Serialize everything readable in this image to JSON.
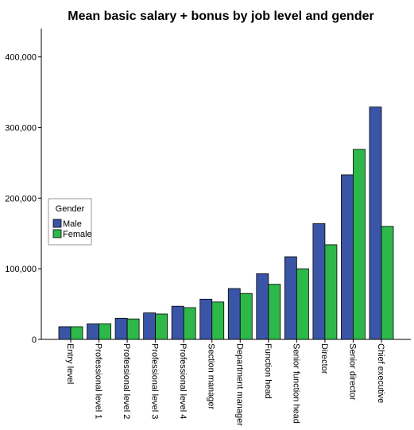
{
  "chart_data": {
    "type": "bar",
    "title": "Mean basic salary + bonus by job level and gender",
    "categories": [
      "Entry level",
      "Professional level 1",
      "Professional level 2",
      "Professional level 3",
      "Professional level 4",
      "Section manager",
      "Department manager",
      "Function head",
      "Senior function head",
      "Director",
      "Senior director",
      "Chief executive"
    ],
    "series": [
      {
        "name": "Male",
        "color": "#3B55A6",
        "values": [
          18000,
          22000,
          30000,
          37500,
          47000,
          57000,
          72000,
          93000,
          117000,
          164000,
          233000,
          329000
        ]
      },
      {
        "name": "Female",
        "color": "#2EB84A",
        "values": [
          18000,
          22000,
          29000,
          36000,
          45000,
          53000,
          65000,
          78000,
          100000,
          134000,
          269000,
          160000
        ]
      }
    ],
    "y_ticks": [
      "0",
      "100,000",
      "200,000",
      "300,000",
      "400,000"
    ],
    "y_tick_values": [
      0,
      100000,
      200000,
      300000,
      400000
    ],
    "ylim": [
      0,
      440000
    ],
    "legend": {
      "title": "Gender",
      "placement": "left"
    },
    "grid": false
  }
}
